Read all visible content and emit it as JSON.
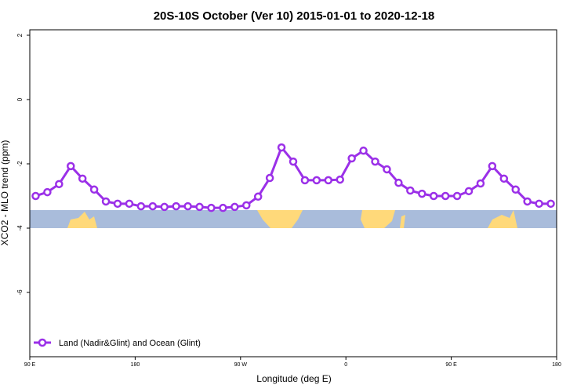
{
  "chart_data": {
    "type": "line",
    "title": "20S-10S October (Ver 10)   2015-01-01 to 2020-12-18",
    "x_label": "Longitude (deg E)",
    "y_label": "XCO2 - MLO trend (ppm)",
    "x": [
      95,
      105,
      115,
      125,
      135,
      145,
      155,
      165,
      175,
      185,
      195,
      205,
      215,
      225,
      235,
      245,
      255,
      265,
      275,
      285,
      295,
      305,
      315,
      325,
      335,
      345,
      355,
      365,
      375,
      385,
      395,
      405,
      415,
      425,
      435,
      445,
      455,
      465,
      475,
      485,
      495,
      505,
      515,
      525,
      535
    ],
    "series": [
      {
        "name": "Land (Nadir&Glint) and Ocean (Glint)",
        "color": "#9b30e8",
        "values": [
          -3.0,
          -2.88,
          -2.63,
          -2.07,
          -2.46,
          -2.8,
          -3.17,
          -3.24,
          -3.24,
          -3.32,
          -3.32,
          -3.34,
          -3.32,
          -3.32,
          -3.34,
          -3.37,
          -3.37,
          -3.34,
          -3.29,
          -3.02,
          -2.44,
          -1.49,
          -1.93,
          -2.51,
          -2.51,
          -2.51,
          -2.49,
          -1.83,
          -1.59,
          -1.93,
          -2.17,
          -2.59,
          -2.83,
          -2.93,
          -3.0,
          -3.0,
          -3.0,
          -2.85,
          -2.61,
          -2.07,
          -2.46,
          -2.8,
          -3.17,
          -3.24,
          -3.24
        ]
      }
    ],
    "xlim": [
      90,
      540
    ],
    "xticks": [
      {
        "value": 90,
        "label": "90 E"
      },
      180,
      {
        "value": 270,
        "label": "90 W"
      },
      {
        "value": 360,
        "label": "0"
      },
      {
        "value": 450,
        "label": "90 E"
      },
      {
        "value": 540,
        "label": "180"
      }
    ],
    "ylim": [
      -8,
      2.17
    ],
    "yticks": [
      2,
      0,
      -2,
      -4,
      -6
    ],
    "legend": "bottom-left"
  }
}
